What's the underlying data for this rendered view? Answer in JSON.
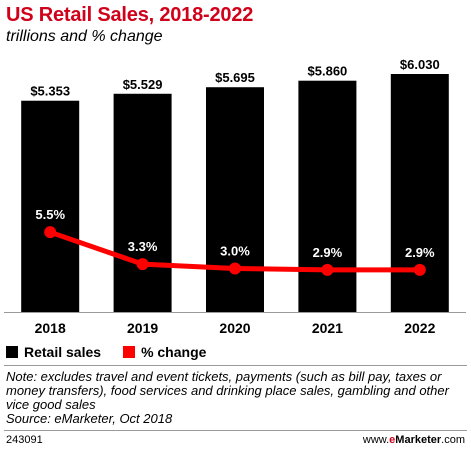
{
  "header": {
    "title": "US Retail Sales, 2018-2022",
    "subtitle": "trillions and % change"
  },
  "chart_data": {
    "type": "bar",
    "categories": [
      "2018",
      "2019",
      "2020",
      "2021",
      "2022"
    ],
    "series": [
      {
        "name": "Retail sales",
        "type": "bar",
        "values": [
          5.353,
          5.529,
          5.695,
          5.86,
          6.03
        ],
        "labels": [
          "$5.353",
          "$5.529",
          "$5.695",
          "$5.860",
          "$6.030"
        ],
        "color": "#000000"
      },
      {
        "name": "% change",
        "type": "line",
        "values": [
          5.5,
          3.3,
          3.0,
          2.9,
          2.9
        ],
        "labels": [
          "5.5%",
          "3.3%",
          "3.0%",
          "2.9%",
          "2.9%"
        ],
        "color": "#ff0000"
      }
    ],
    "bar_axis_max": 6.03,
    "line_axis_range": [
      0,
      16.4
    ],
    "legend_placement": "bottom-left",
    "grid": false
  },
  "legend": {
    "items": [
      {
        "label": "Retail sales",
        "color": "#000000"
      },
      {
        "label": "% change",
        "color": "#ff0000"
      }
    ]
  },
  "footer": {
    "note": "Note: excludes travel and event tickets, payments (such as bill pay, taxes or money transfers), food services and drinking place sales, gambling and other vice good sales",
    "source": "Source: eMarketer, Oct 2018",
    "chart_id": "243091",
    "brand_prefix": "www.",
    "brand_e": "e",
    "brand_marketer": "Marketer",
    "brand_suffix": ".com"
  },
  "colors": {
    "title": "#d0021b",
    "bars": "#000000",
    "line": "#ff0000"
  }
}
